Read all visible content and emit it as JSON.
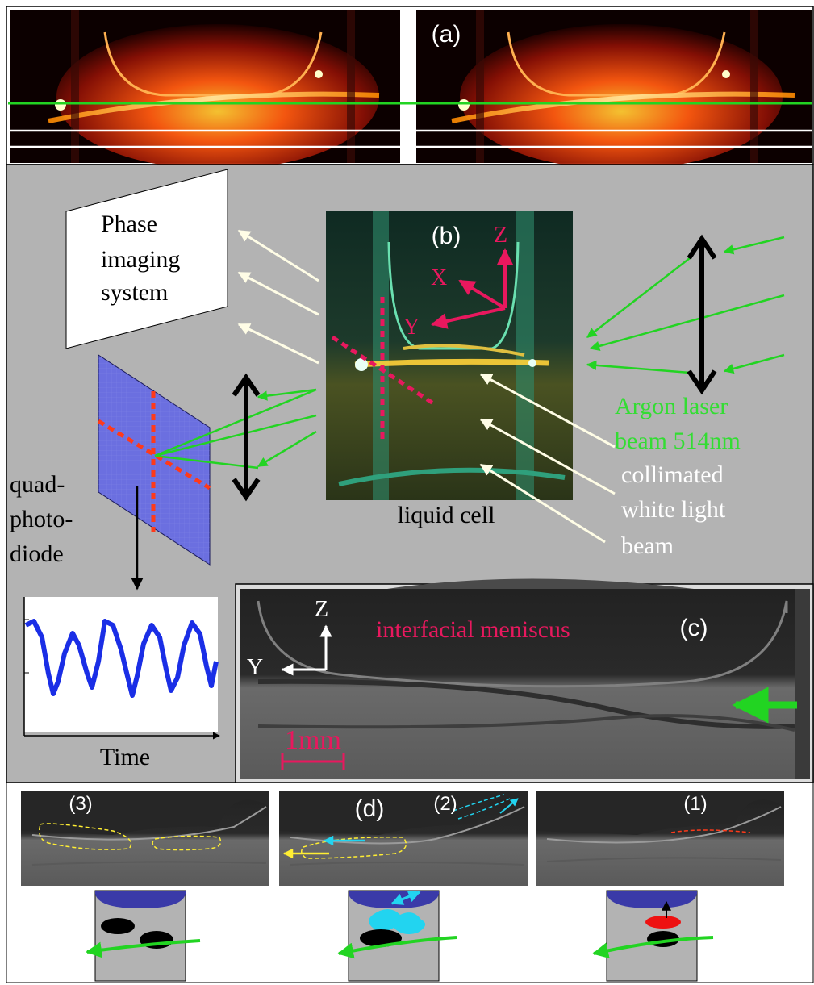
{
  "panels": {
    "a": {
      "label": "(a)"
    },
    "b": {
      "label": "(b)",
      "phase_box": {
        "lines": [
          "Phase",
          "imaging",
          "system"
        ]
      },
      "axes": {
        "z": "Z",
        "x": "X",
        "y": "Y"
      },
      "cell_caption": "liquid cell",
      "detector_lines": [
        "quad-",
        "photo-",
        "diode"
      ],
      "signal_xlabel": "Time",
      "laser_lines": [
        "Argon laser",
        "beam 514nm"
      ],
      "white_light_lines": [
        "collimated",
        "white light",
        "beam"
      ]
    },
    "c": {
      "label": "(c)",
      "axis_z": "Z",
      "axis_y": "Y",
      "meniscus_label": "interfacial meniscus",
      "scale_label": "1mm"
    },
    "d": {
      "label": "(d)",
      "frames": [
        {
          "label": "(3)"
        },
        {
          "label": "(2)"
        },
        {
          "label": "(1)"
        }
      ]
    }
  },
  "colors": {
    "panel_gray": "#b3b3b3",
    "laser_green": "#22d422",
    "text_green": "#33dd33",
    "accent_pink": "#e8185e",
    "detector_blue": "#6b6fe0",
    "signal_blue": "#1a2ee6",
    "cyan": "#22d4f0",
    "dark_blue": "#3a3aa8"
  }
}
